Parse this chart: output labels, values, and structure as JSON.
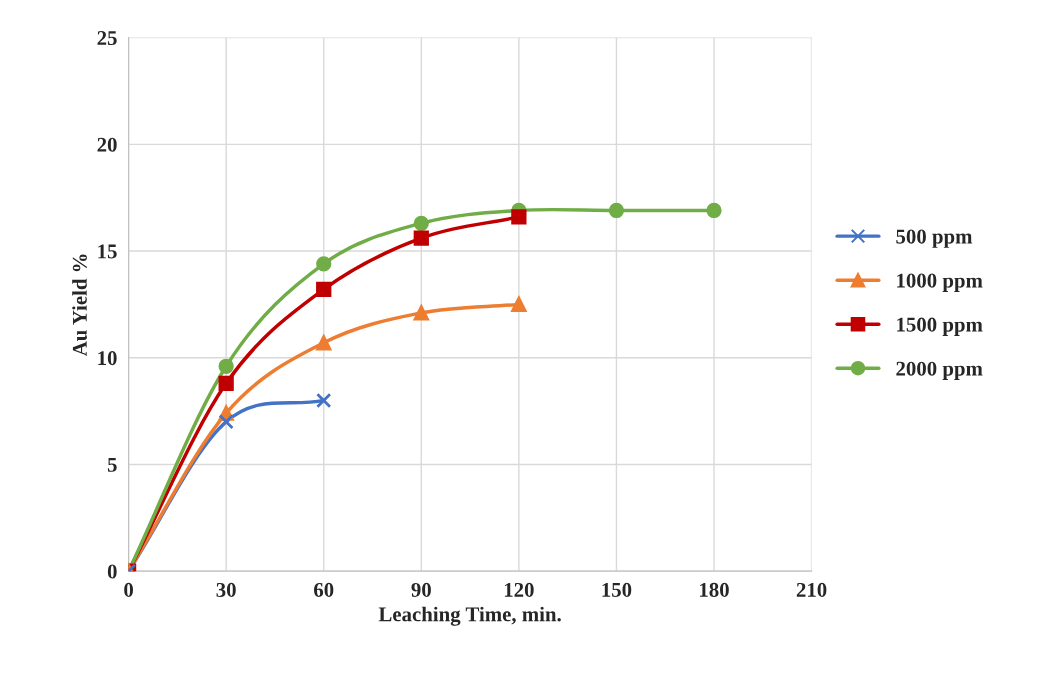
{
  "chart_data": {
    "type": "line",
    "xlabel": "Leaching Time, min.",
    "ylabel": "Au Yield %",
    "xlim": [
      0,
      210
    ],
    "xticks": [
      0,
      30,
      60,
      90,
      120,
      150,
      180,
      210
    ],
    "ylim": [
      0,
      25
    ],
    "yticks": [
      0,
      5,
      10,
      15,
      20,
      25
    ],
    "grid": true,
    "legend": "right",
    "line_style": "solid",
    "series": [
      {
        "name": "500 ppm",
        "color": "#4472c4",
        "marker": "cross",
        "x": [
          0,
          30,
          60
        ],
        "values": [
          0,
          7.0,
          8.0
        ]
      },
      {
        "name": "1000 ppm",
        "color": "#ed7d31",
        "marker": "triangle",
        "x": [
          0,
          30,
          60,
          90,
          120
        ],
        "values": [
          0,
          7.4,
          10.7,
          12.1,
          12.5
        ]
      },
      {
        "name": "1500 ppm",
        "color": "#c00000",
        "marker": "square",
        "x": [
          0,
          30,
          60,
          90,
          120
        ],
        "values": [
          0,
          8.8,
          13.2,
          15.6,
          16.6
        ]
      },
      {
        "name": "2000 ppm",
        "color": "#70ad47",
        "marker": "circle",
        "x": [
          0,
          30,
          60,
          90,
          120,
          150,
          180
        ],
        "values": [
          0,
          9.6,
          14.4,
          16.3,
          16.9,
          16.9,
          16.9
        ]
      }
    ]
  }
}
